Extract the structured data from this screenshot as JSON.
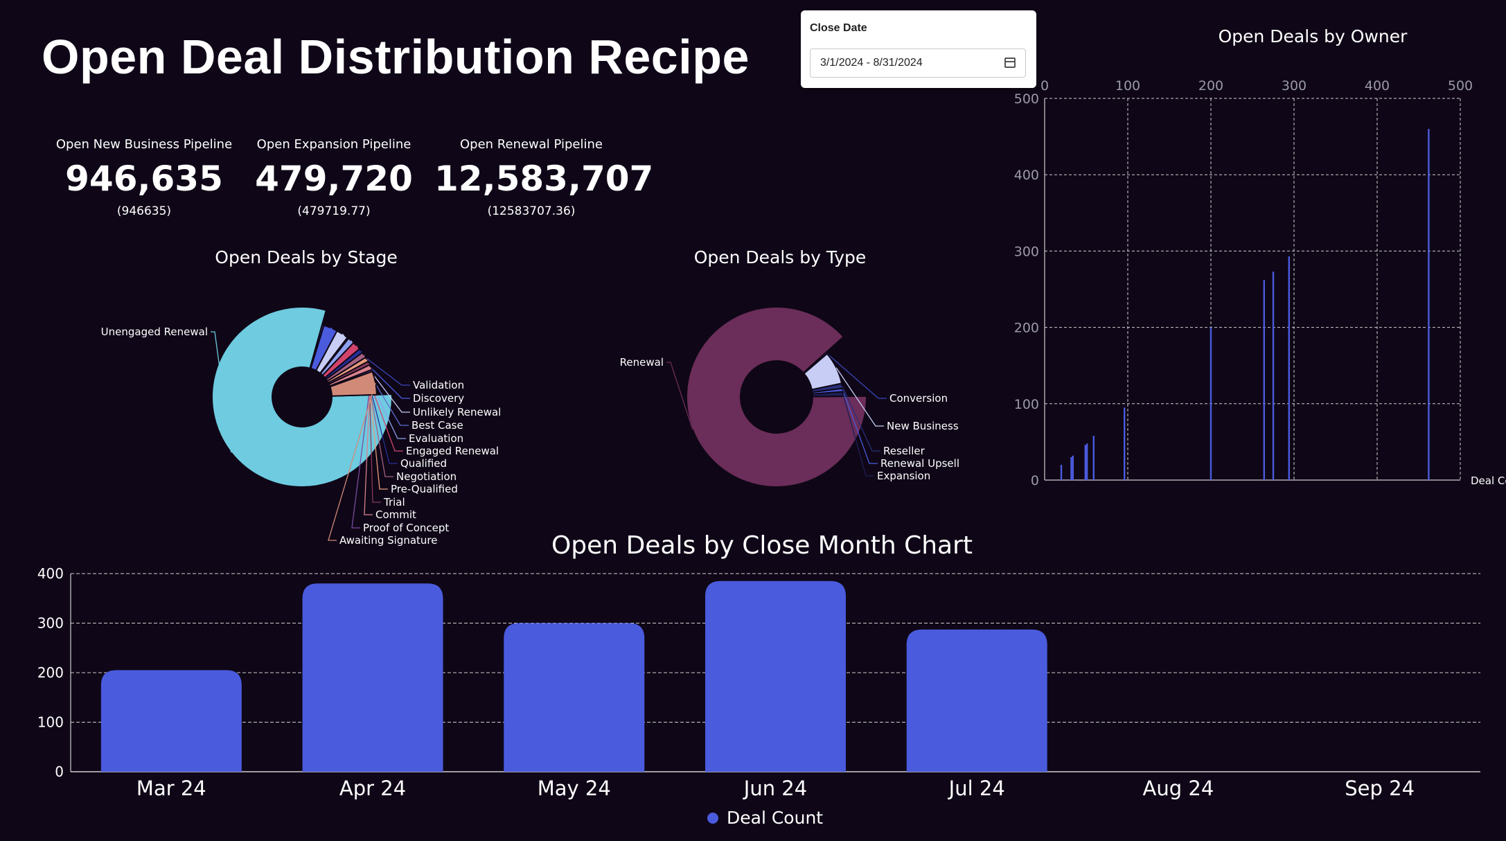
{
  "page_title": "Open Deal Distribution Recipe",
  "filter": {
    "label": "Close Date",
    "value": "3/1/2024 - 8/31/2024",
    "icon": "calendar-icon"
  },
  "kpis": [
    {
      "label": "Open New Business Pipeline",
      "value": "946,635",
      "sub": "(946635)"
    },
    {
      "label": "Open Expansion Pipeline",
      "value": "479,720",
      "sub": "(479719.77)"
    },
    {
      "label": "Open Renewal Pipeline",
      "value": "12,583,707",
      "sub": "(12583707.36)"
    }
  ],
  "colors": {
    "background": "#0f0717",
    "bar": "#4a5bde",
    "stage_main": "#6ecbe0",
    "type_main": "#6b2d59"
  },
  "chart_data": [
    {
      "id": "stage",
      "type": "pie",
      "title": "Open Deals by Stage",
      "slices": [
        {
          "label": "Unengaged Renewal",
          "value": 79.0,
          "color": "#6ecbe0"
        },
        {
          "label": "Validation",
          "value": 0.4,
          "color": "#3a46b8"
        },
        {
          "label": "Discovery",
          "value": 3.0,
          "color": "#4a5bde"
        },
        {
          "label": "Unlikely Renewal",
          "value": 2.6,
          "color": "#c8cdf6"
        },
        {
          "label": "Best Case",
          "value": 0.3,
          "color": "#5e6fd0"
        },
        {
          "label": "Evaluation",
          "value": 1.4,
          "color": "#8fa0ee"
        },
        {
          "label": "Engaged Renewal",
          "value": 1.8,
          "color": "#d3446d"
        },
        {
          "label": "Qualified",
          "value": 1.0,
          "color": "#272f9a"
        },
        {
          "label": "Negotiation",
          "value": 1.2,
          "color": "#a5607f"
        },
        {
          "label": "Pre-Qualified",
          "value": 1.0,
          "color": "#e69a7c"
        },
        {
          "label": "Trial",
          "value": 0.8,
          "color": "#8a3a5a"
        },
        {
          "label": "Commit",
          "value": 1.1,
          "color": "#d9828e"
        },
        {
          "label": "Proof of Concept",
          "value": 0.4,
          "color": "#7a4aa0"
        },
        {
          "label": "Awaiting Signature",
          "value": 5.0,
          "color": "#d28a78"
        }
      ]
    },
    {
      "id": "type",
      "type": "pie",
      "title": "Open Deals by Type",
      "slices": [
        {
          "label": "Renewal",
          "value": 88.5,
          "color": "#6b2d59"
        },
        {
          "label": "Conversion",
          "value": 0.4,
          "color": "#3a46b8"
        },
        {
          "label": "New Business",
          "value": 8.0,
          "color": "#c8cdf6"
        },
        {
          "label": "Reseller",
          "value": 1.2,
          "color": "#2a2f7a"
        },
        {
          "label": "Renewal Upsell",
          "value": 0.8,
          "color": "#4a5bde"
        },
        {
          "label": "Expansion",
          "value": 1.1,
          "color": "#1e1f55"
        }
      ]
    },
    {
      "id": "owner",
      "type": "bar",
      "title": "Open Deals by Owner",
      "xlabel": "Deal Co",
      "x_ticks": [
        0,
        100,
        200,
        300,
        400,
        500
      ],
      "y_ticks": [
        0,
        100,
        200,
        300,
        400,
        500
      ],
      "xlim": [
        0,
        500
      ],
      "ylim": [
        0,
        500
      ],
      "grid": true,
      "bars": [
        {
          "x": 20,
          "y": 20
        },
        {
          "x": 32,
          "y": 30
        },
        {
          "x": 34,
          "y": 32
        },
        {
          "x": 49,
          "y": 46
        },
        {
          "x": 51,
          "y": 48
        },
        {
          "x": 59,
          "y": 58
        },
        {
          "x": 96,
          "y": 95
        },
        {
          "x": 200,
          "y": 200
        },
        {
          "x": 264,
          "y": 262
        },
        {
          "x": 275,
          "y": 273
        },
        {
          "x": 294,
          "y": 293
        },
        {
          "x": 462,
          "y": 460
        }
      ]
    },
    {
      "id": "month",
      "type": "bar",
      "title": "Open Deals by Close Month Chart",
      "categories": [
        "Mar 24",
        "Apr 24",
        "May 24",
        "Jun 24",
        "Jul 24",
        "Aug 24",
        "Sep 24"
      ],
      "series": [
        {
          "name": "Deal Count",
          "values": [
            205,
            380,
            300,
            385,
            287,
            0,
            0
          ]
        }
      ],
      "y_ticks": [
        0,
        100,
        200,
        300,
        400
      ],
      "ylim": [
        0,
        400
      ],
      "grid": true,
      "legend": "bottom"
    }
  ]
}
